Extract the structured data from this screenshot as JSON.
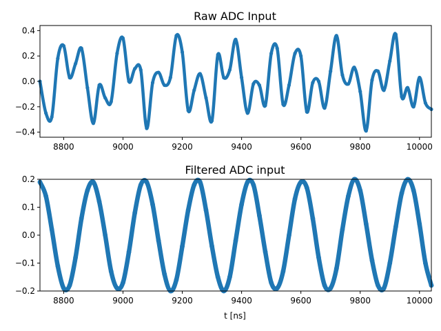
{
  "chart_data": [
    {
      "type": "scatter",
      "title": "Raw ADC Input",
      "xlabel": "",
      "ylabel": "",
      "xlim": [
        8720,
        10040
      ],
      "ylim": [
        -0.44,
        0.44
      ],
      "x_ticks": [
        8800,
        9000,
        9200,
        9400,
        9600,
        9800,
        10000
      ],
      "x_tick_labels": [
        "8800",
        "9000",
        "9200",
        "9400",
        "9600",
        "9800",
        "10000"
      ],
      "y_ticks": [
        -0.4,
        -0.2,
        0.0,
        0.2,
        0.4
      ],
      "y_tick_labels": [
        "−0.4",
        "−0.2",
        "0.0",
        "0.2",
        "0.4"
      ],
      "grid": false,
      "color": "#1f77b4",
      "series": [
        {
          "x": [
            8720,
            8740,
            8760,
            8780,
            8800,
            8820,
            8840,
            8860,
            8880,
            8900,
            8920,
            8940,
            8960,
            8980,
            9000,
            9020,
            9040,
            9060,
            9080,
            9100,
            9120,
            9140,
            9160,
            9180,
            9200,
            9220,
            9240,
            9260,
            9280,
            9300,
            9320,
            9340,
            9360,
            9380,
            9400,
            9420,
            9440,
            9460,
            9480,
            9500,
            9520,
            9540,
            9560,
            9580,
            9600,
            9620,
            9640,
            9660,
            9680,
            9700,
            9720,
            9740,
            9760,
            9780,
            9800,
            9820,
            9840,
            9860,
            9880,
            9900,
            9920,
            9940,
            9960,
            9980,
            10000,
            10020,
            10040
          ],
          "y": [
            0.0,
            -0.25,
            -0.28,
            0.18,
            0.28,
            0.03,
            0.14,
            0.26,
            -0.05,
            -0.33,
            -0.03,
            -0.13,
            -0.16,
            0.22,
            0.34,
            -0.0,
            0.1,
            0.09,
            -0.37,
            -0.01,
            0.07,
            -0.03,
            0.03,
            0.36,
            0.23,
            -0.23,
            -0.07,
            0.06,
            -0.13,
            -0.31,
            0.21,
            0.03,
            0.09,
            0.33,
            0.03,
            -0.25,
            -0.02,
            -0.03,
            -0.19,
            0.22,
            0.26,
            -0.18,
            -0.03,
            0.22,
            0.2,
            -0.24,
            -0.01,
            -0.0,
            -0.21,
            0.08,
            0.36,
            0.05,
            -0.02,
            0.11,
            -0.08,
            -0.39,
            0.01,
            0.08,
            -0.07,
            0.16,
            0.37,
            -0.12,
            -0.05,
            -0.2,
            0.03,
            -0.17,
            -0.22
          ]
        }
      ]
    },
    {
      "type": "scatter",
      "title": "Filtered ADC input",
      "xlabel": "t [ns]",
      "ylabel": "",
      "xlim": [
        8720,
        10040
      ],
      "ylim": [
        -0.2,
        0.2
      ],
      "x_ticks": [
        8800,
        9000,
        9200,
        9400,
        9600,
        9800,
        10000
      ],
      "x_tick_labels": [
        "8800",
        "9000",
        "9200",
        "9400",
        "9600",
        "9800",
        "10000"
      ],
      "y_ticks": [
        -0.2,
        -0.1,
        0.0,
        0.1,
        0.2
      ],
      "y_tick_labels": [
        "−0.2",
        "−0.1",
        "0.0",
        "0.1",
        "0.2"
      ],
      "grid": false,
      "color": "#1f77b4",
      "series": [
        {
          "x": [
            8720,
            8740,
            8760,
            8780,
            8800,
            8820,
            8840,
            8860,
            8880,
            8900,
            8920,
            8940,
            8960,
            8980,
            9000,
            9020,
            9040,
            9060,
            9080,
            9100,
            9120,
            9140,
            9160,
            9180,
            9200,
            9220,
            9240,
            9260,
            9280,
            9300,
            9320,
            9340,
            9360,
            9380,
            9400,
            9420,
            9440,
            9460,
            9480,
            9500,
            9520,
            9540,
            9560,
            9580,
            9600,
            9620,
            9640,
            9660,
            9680,
            9700,
            9720,
            9740,
            9760,
            9780,
            9800,
            9820,
            9840,
            9860,
            9880,
            9900,
            9920,
            9940,
            9960,
            9980,
            10000,
            10020,
            10040
          ],
          "y": [
            0.19,
            0.14,
            0.02,
            -0.11,
            -0.19,
            -0.18,
            -0.08,
            0.06,
            0.16,
            0.19,
            0.12,
            0.0,
            -0.13,
            -0.19,
            -0.17,
            -0.06,
            0.08,
            0.18,
            0.19,
            0.11,
            -0.02,
            -0.14,
            -0.2,
            -0.16,
            -0.04,
            0.09,
            0.18,
            0.19,
            0.09,
            -0.04,
            -0.15,
            -0.2,
            -0.15,
            -0.02,
            0.11,
            0.19,
            0.18,
            0.07,
            -0.06,
            -0.17,
            -0.19,
            -0.13,
            0.0,
            0.13,
            0.19,
            0.17,
            0.06,
            -0.08,
            -0.18,
            -0.19,
            -0.12,
            0.02,
            0.14,
            0.2,
            0.16,
            0.04,
            -0.09,
            -0.18,
            -0.19,
            -0.1,
            0.03,
            0.15,
            0.2,
            0.16,
            0.04,
            -0.1,
            -0.18
          ]
        }
      ]
    }
  ]
}
